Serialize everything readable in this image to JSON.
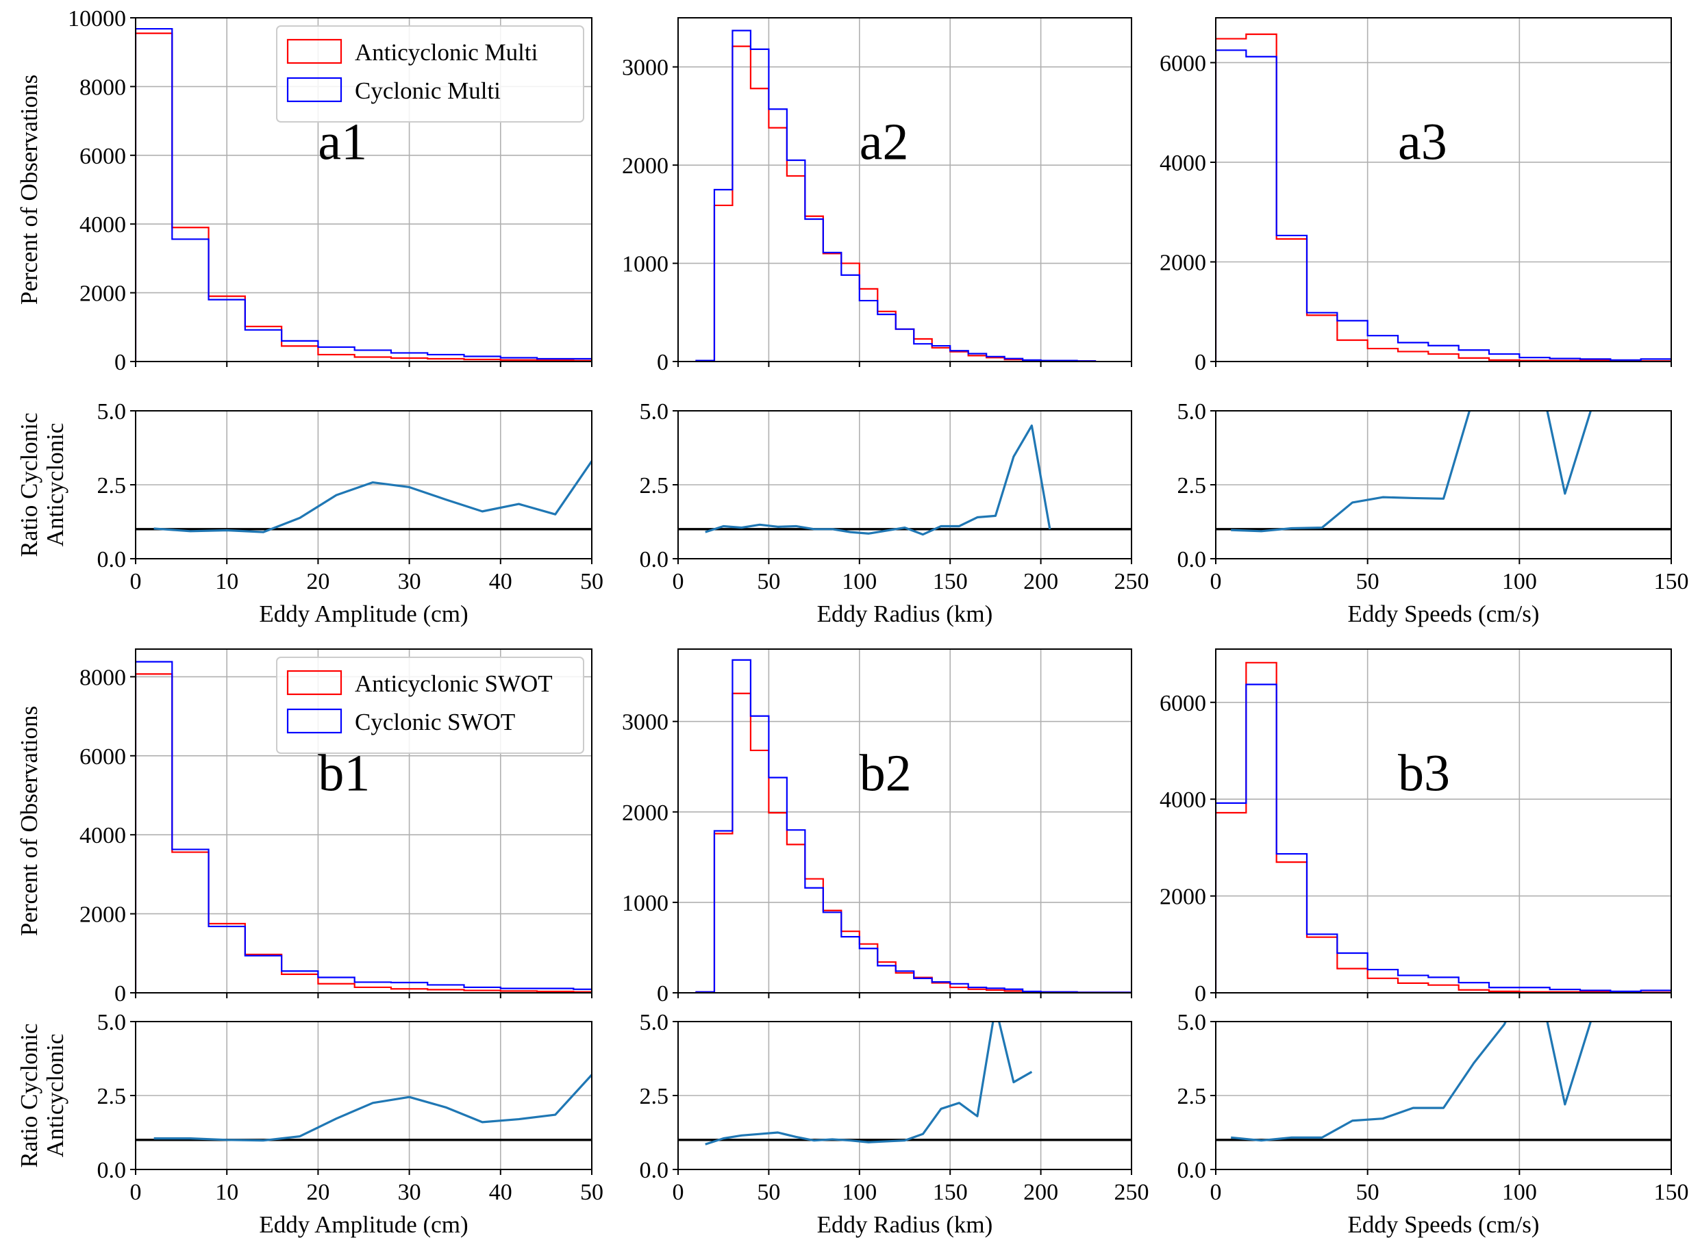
{
  "colors": {
    "anticyclonic": "#ff0000",
    "cyclonic": "#0000ff",
    "ratio": "#1f77b4",
    "reference_line": "#000000",
    "grid": "#b0b0b0"
  },
  "chart_data": [
    {
      "id": "a1",
      "type": "step-histogram",
      "panel_label": "a1",
      "xlabel": "",
      "ylabel": "Percent of Observations",
      "xlim": [
        0,
        50
      ],
      "ylim": [
        0,
        10000
      ],
      "xticks": [
        0,
        10,
        20,
        30,
        40,
        50
      ],
      "xtick_labels_shown": false,
      "yticks": [
        0,
        2000,
        4000,
        6000,
        8000,
        10000
      ],
      "grid": true,
      "legend": "upper-right",
      "bin_edges": [
        0,
        4,
        8,
        12,
        16,
        20,
        24,
        28,
        32,
        36,
        40,
        44,
        48,
        52
      ],
      "series": [
        {
          "name": "Anticyclonic Multi",
          "color": "#ff0000",
          "values": [
            9550,
            3900,
            1900,
            1020,
            450,
            200,
            130,
            100,
            80,
            60,
            45,
            35,
            25
          ]
        },
        {
          "name": "Cyclonic Multi",
          "color": "#0000ff",
          "values": [
            9680,
            3560,
            1800,
            920,
            600,
            420,
            330,
            250,
            200,
            150,
            110,
            80,
            80
          ]
        }
      ]
    },
    {
      "id": "a2",
      "type": "step-histogram",
      "panel_label": "a2",
      "xlabel": "",
      "ylabel": "",
      "xlim": [
        0,
        250
      ],
      "ylim": [
        0,
        3500
      ],
      "xticks": [
        0,
        50,
        100,
        150,
        200,
        250
      ],
      "xtick_labels_shown": false,
      "yticks": [
        0,
        1000,
        2000,
        3000
      ],
      "grid": true,
      "bin_edges": [
        10,
        20,
        30,
        40,
        50,
        60,
        70,
        80,
        90,
        100,
        110,
        120,
        130,
        140,
        150,
        160,
        170,
        180,
        190,
        200,
        210,
        220,
        230
      ],
      "series": [
        {
          "name": "Anticyclonic Multi",
          "color": "#ff0000",
          "values": [
            10,
            1590,
            3210,
            2780,
            2380,
            1890,
            1480,
            1100,
            1000,
            740,
            510,
            330,
            230,
            140,
            100,
            60,
            40,
            20,
            10,
            10,
            5,
            5
          ]
        },
        {
          "name": "Cyclonic Multi",
          "color": "#0000ff",
          "values": [
            10,
            1750,
            3370,
            3180,
            2570,
            2050,
            1450,
            1110,
            880,
            620,
            480,
            330,
            180,
            160,
            110,
            80,
            50,
            30,
            15,
            10,
            10,
            5
          ]
        }
      ]
    },
    {
      "id": "a3",
      "type": "step-histogram",
      "panel_label": "a3",
      "xlabel": "",
      "ylabel": "",
      "xlim": [
        0,
        150
      ],
      "ylim": [
        0,
        6900
      ],
      "xticks": [
        0,
        50,
        100,
        150
      ],
      "xtick_labels_shown": false,
      "yticks": [
        0,
        2000,
        4000,
        6000
      ],
      "grid": true,
      "bin_edges": [
        0,
        10,
        20,
        30,
        40,
        50,
        60,
        70,
        80,
        90,
        100,
        110,
        120,
        130,
        140,
        150
      ],
      "series": [
        {
          "name": "Anticyclonic Multi",
          "color": "#ff0000",
          "values": [
            6480,
            6570,
            2460,
            930,
            430,
            260,
            200,
            150,
            70,
            30,
            20,
            20,
            20,
            10,
            10
          ]
        },
        {
          "name": "Cyclonic Multi",
          "color": "#0000ff",
          "values": [
            6250,
            6120,
            2530,
            980,
            820,
            520,
            380,
            320,
            230,
            150,
            80,
            60,
            50,
            30,
            50
          ]
        }
      ]
    },
    {
      "id": "a1-ratio",
      "type": "line",
      "xlabel": "Eddy Amplitude (cm)",
      "ylabel": "Ratio Cyclonic\nAnticyclonic",
      "xlim": [
        0,
        50
      ],
      "ylim": [
        0,
        5
      ],
      "xticks": [
        0,
        10,
        20,
        30,
        40,
        50
      ],
      "yticks": [
        0.0,
        2.5,
        5.0
      ],
      "ytick_labels": [
        "0.0",
        "2.5",
        "5.0"
      ],
      "grid": true,
      "reference_y": 1,
      "x": [
        2,
        6,
        10,
        14,
        18,
        22,
        26,
        30,
        34,
        38,
        42,
        46,
        50
      ],
      "y": [
        1.02,
        0.93,
        0.96,
        0.9,
        1.38,
        2.15,
        2.58,
        2.42,
        2.0,
        1.6,
        1.85,
        1.5,
        3.3
      ]
    },
    {
      "id": "a2-ratio",
      "type": "line",
      "xlabel": "Eddy Radius (km)",
      "ylabel": "",
      "xlim": [
        0,
        250
      ],
      "ylim": [
        0,
        5
      ],
      "xticks": [
        0,
        50,
        100,
        150,
        200,
        250
      ],
      "yticks": [
        0.0,
        2.5,
        5.0
      ],
      "ytick_labels": [
        "0.0",
        "2.5",
        "5.0"
      ],
      "grid": true,
      "reference_y": 1,
      "x": [
        15,
        25,
        35,
        45,
        55,
        65,
        75,
        85,
        95,
        105,
        115,
        125,
        135,
        145,
        155,
        165,
        175,
        185,
        195,
        205
      ],
      "y": [
        0.9,
        1.1,
        1.05,
        1.15,
        1.08,
        1.1,
        1.0,
        1.0,
        0.9,
        0.85,
        0.95,
        1.05,
        0.82,
        1.1,
        1.1,
        1.4,
        1.45,
        3.45,
        4.5,
        1.0
      ]
    },
    {
      "id": "a3-ratio",
      "type": "line",
      "xlabel": "Eddy Speeds (cm/s)",
      "ylabel": "",
      "xlim": [
        0,
        150
      ],
      "ylim": [
        0,
        5
      ],
      "xticks": [
        0,
        50,
        100,
        150
      ],
      "yticks": [
        0.0,
        2.5,
        5.0
      ],
      "ytick_labels": [
        "0.0",
        "2.5",
        "5.0"
      ],
      "grid": true,
      "reference_y": 1,
      "x": [
        5,
        15,
        25,
        35,
        45,
        55,
        65,
        75,
        85,
        95,
        105,
        115,
        125,
        135,
        145
      ],
      "y": [
        0.97,
        0.93,
        1.03,
        1.05,
        1.9,
        2.08,
        2.05,
        2.03,
        5.5,
        8.0,
        7.0,
        2.2,
        5.5,
        7.0,
        6.0
      ]
    },
    {
      "id": "b1",
      "type": "step-histogram",
      "panel_label": "b1",
      "xlabel": "",
      "ylabel": "Percent of Observations",
      "xlim": [
        0,
        50
      ],
      "ylim": [
        0,
        8700
      ],
      "xticks": [
        0,
        10,
        20,
        30,
        40,
        50
      ],
      "xtick_labels_shown": false,
      "yticks": [
        0,
        2000,
        4000,
        6000,
        8000
      ],
      "grid": true,
      "legend": "upper-right",
      "bin_edges": [
        0,
        4,
        8,
        12,
        16,
        20,
        24,
        28,
        32,
        36,
        40,
        44,
        48,
        52
      ],
      "series": [
        {
          "name": "Anticyclonic SWOT",
          "color": "#ff0000",
          "values": [
            8070,
            3560,
            1750,
            970,
            470,
            230,
            140,
            100,
            80,
            60,
            45,
            35,
            25
          ]
        },
        {
          "name": "Cyclonic SWOT",
          "color": "#0000ff",
          "values": [
            8380,
            3630,
            1680,
            940,
            550,
            390,
            270,
            260,
            200,
            140,
            110,
            110,
            90
          ]
        }
      ]
    },
    {
      "id": "b2",
      "type": "step-histogram",
      "panel_label": "b2",
      "xlabel": "",
      "ylabel": "",
      "xlim": [
        0,
        250
      ],
      "ylim": [
        0,
        3800
      ],
      "xticks": [
        0,
        50,
        100,
        150,
        200,
        250
      ],
      "xtick_labels_shown": false,
      "yticks": [
        0,
        1000,
        2000,
        3000
      ],
      "grid": true,
      "bin_edges": [
        10,
        20,
        30,
        40,
        50,
        60,
        70,
        80,
        90,
        100,
        110,
        120,
        130,
        140,
        150,
        160,
        170,
        180,
        190,
        200,
        210,
        220,
        230,
        240,
        250
      ],
      "series": [
        {
          "name": "Anticyclonic SWOT",
          "color": "#ff0000",
          "values": [
            10,
            1760,
            3310,
            2680,
            1990,
            1640,
            1260,
            910,
            680,
            540,
            340,
            220,
            170,
            110,
            60,
            40,
            30,
            20,
            10,
            10,
            10,
            5,
            5,
            5
          ]
        },
        {
          "name": "Cyclonic SWOT",
          "color": "#0000ff",
          "values": [
            10,
            1790,
            3680,
            3060,
            2380,
            1800,
            1160,
            890,
            620,
            490,
            300,
            240,
            160,
            120,
            100,
            60,
            50,
            40,
            15,
            10,
            10,
            5,
            5,
            5
          ]
        }
      ]
    },
    {
      "id": "b3",
      "type": "step-histogram",
      "panel_label": "b3",
      "xlabel": "",
      "ylabel": "",
      "xlim": [
        0,
        150
      ],
      "ylim": [
        0,
        7100
      ],
      "xticks": [
        0,
        50,
        100,
        150
      ],
      "xtick_labels_shown": false,
      "yticks": [
        0,
        2000,
        4000,
        6000
      ],
      "grid": true,
      "bin_edges": [
        0,
        10,
        20,
        30,
        40,
        50,
        60,
        70,
        80,
        90,
        100,
        110,
        120,
        130,
        140,
        150
      ],
      "series": [
        {
          "name": "Anticyclonic SWOT",
          "color": "#ff0000",
          "values": [
            3720,
            6820,
            2700,
            1150,
            500,
            300,
            200,
            160,
            60,
            30,
            20,
            20,
            20,
            10,
            10
          ]
        },
        {
          "name": "Cyclonic SWOT",
          "color": "#0000ff",
          "values": [
            3920,
            6370,
            2870,
            1210,
            820,
            480,
            360,
            320,
            210,
            110,
            110,
            70,
            50,
            30,
            50
          ]
        }
      ]
    },
    {
      "id": "b1-ratio",
      "type": "line",
      "xlabel": "Eddy Amplitude (cm)",
      "ylabel": "Ratio Cyclonic\nAnticyclonic",
      "xlim": [
        0,
        50
      ],
      "ylim": [
        0,
        5
      ],
      "xticks": [
        0,
        10,
        20,
        30,
        40,
        50
      ],
      "yticks": [
        0.0,
        2.5,
        5.0
      ],
      "ytick_labels": [
        "0.0",
        "2.5",
        "5.0"
      ],
      "grid": true,
      "reference_y": 1,
      "x": [
        2,
        6,
        10,
        14,
        18,
        22,
        26,
        30,
        34,
        38,
        42,
        46,
        50
      ],
      "y": [
        1.05,
        1.05,
        1.0,
        0.98,
        1.12,
        1.72,
        2.25,
        2.45,
        2.1,
        1.6,
        1.7,
        1.85,
        3.2
      ]
    },
    {
      "id": "b2-ratio",
      "type": "line",
      "xlabel": "Eddy Radius (km)",
      "ylabel": "",
      "xlim": [
        0,
        250
      ],
      "ylim": [
        0,
        5
      ],
      "xticks": [
        0,
        50,
        100,
        150,
        200,
        250
      ],
      "yticks": [
        0.0,
        2.5,
        5.0
      ],
      "ytick_labels": [
        "0.0",
        "2.5",
        "5.0"
      ],
      "grid": true,
      "reference_y": 1,
      "x": [
        15,
        25,
        35,
        45,
        55,
        65,
        75,
        85,
        95,
        105,
        115,
        125,
        135,
        145,
        155,
        165,
        175,
        185,
        195
      ],
      "y": [
        0.85,
        1.05,
        1.15,
        1.2,
        1.25,
        1.1,
        0.98,
        1.02,
        0.98,
        0.92,
        0.95,
        0.98,
        1.2,
        2.05,
        2.25,
        1.8,
        5.5,
        2.95,
        3.3
      ]
    },
    {
      "id": "b3-ratio",
      "type": "line",
      "xlabel": "Eddy Speeds (cm/s)",
      "ylabel": "",
      "xlim": [
        0,
        150
      ],
      "ylim": [
        0,
        5
      ],
      "xticks": [
        0,
        50,
        100,
        150
      ],
      "yticks": [
        0.0,
        2.5,
        5.0
      ],
      "ytick_labels": [
        "0.0",
        "2.5",
        "5.0"
      ],
      "grid": true,
      "reference_y": 1,
      "x": [
        5,
        15,
        25,
        35,
        45,
        55,
        65,
        75,
        85,
        95,
        105,
        115,
        125,
        135,
        145
      ],
      "y": [
        1.08,
        0.98,
        1.08,
        1.08,
        1.65,
        1.72,
        2.08,
        2.08,
        3.6,
        4.9,
        7.0,
        2.2,
        5.5,
        7.0,
        6.0
      ]
    }
  ]
}
